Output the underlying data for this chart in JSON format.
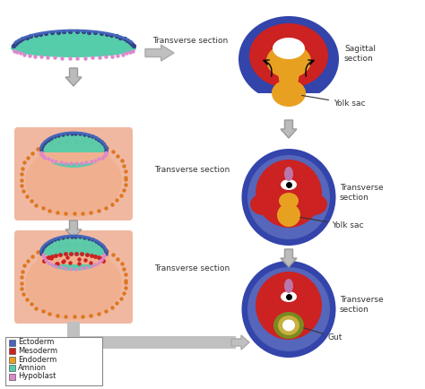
{
  "legend_items": [
    {
      "label": "Ectoderm",
      "color": "#4466bb"
    },
    {
      "label": "Mesoderm",
      "color": "#cc2222"
    },
    {
      "label": "Endoderm",
      "color": "#e8a020"
    },
    {
      "label": "Amnion",
      "color": "#55ccaa"
    },
    {
      "label": "Hypoblast",
      "color": "#dd88cc"
    }
  ],
  "labels": {
    "transverse_section": "Transverse section",
    "sagittal_section": "Sagittal\nsection",
    "transverse_section2": "Transverse\nsection",
    "transverse_section3": "Transverse\nsection",
    "yolk_sac1": "Yolk sac",
    "yolk_sac2": "Yolk sac",
    "gut": "Gut"
  },
  "colors": {
    "background": "#ffffff",
    "pink_bg": "#f0b8a0",
    "salmon_body": "#f0b090",
    "ectoderm_blue": "#4466bb",
    "ectoderm_dark": "#334488",
    "mesoderm_red": "#cc2222",
    "endoderm_yellow": "#e8a020",
    "amnion_green": "#55ccaa",
    "amnion_dark": "#33aa88",
    "hypoblast_pink": "#dd88cc",
    "orange_dots": "#dd7722",
    "arrow_gray": "#bbbbbb",
    "arrow_edge": "#999999",
    "deep_blue": "#3344aa",
    "mid_blue": "#5566bb",
    "light_blue": "#7788cc",
    "white": "#ffffff",
    "black": "#000000",
    "gut_olive": "#7a8a20",
    "gut_yellow": "#c8b040",
    "neural_purple": "#bb77aa",
    "connect_gray": "#c0c0c0",
    "connect_edge": "#aaaaaa"
  }
}
